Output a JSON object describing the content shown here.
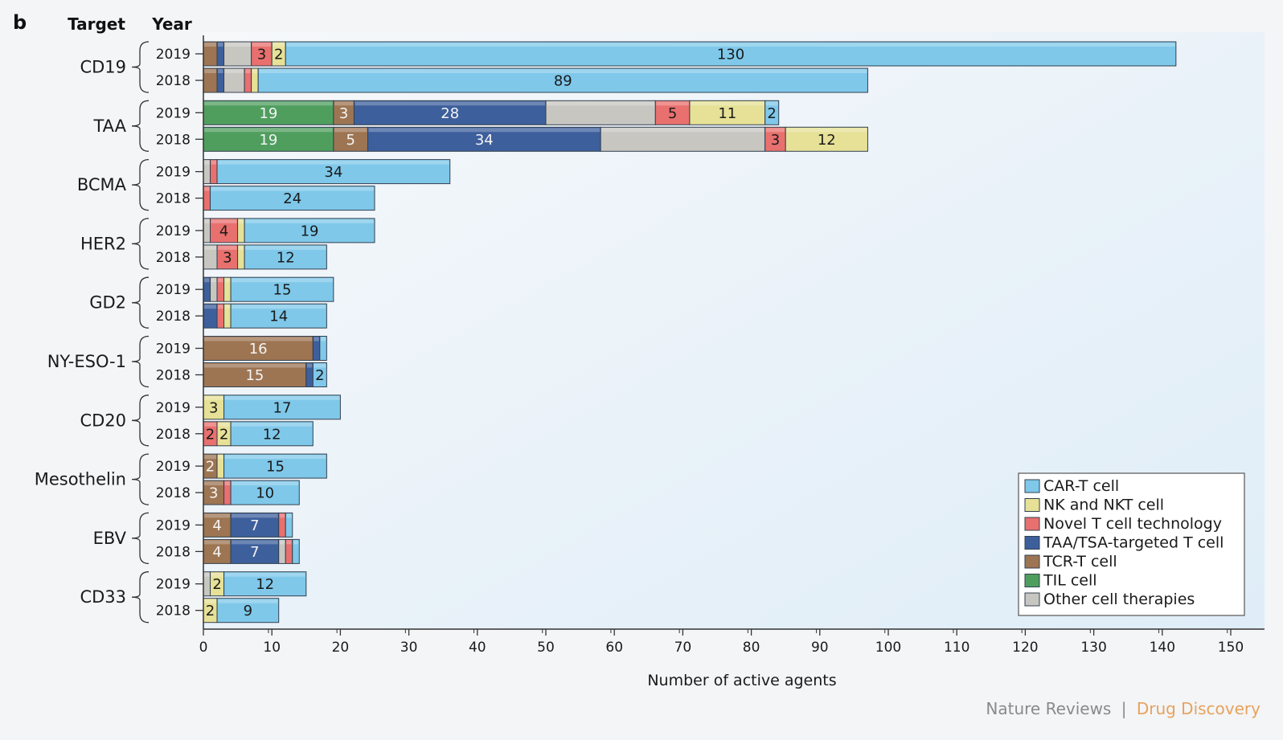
{
  "panel_letter": "b",
  "column_headers": {
    "target": "Target",
    "year": "Year"
  },
  "credit": {
    "journal": "Nature Reviews",
    "separator": "|",
    "section": "Drug Discovery"
  },
  "colors": {
    "CAR-T cell": "#7fc8ea",
    "NK and NKT cell": "#e6e196",
    "Novel T cell technology": "#e8706e",
    "TAA/TSA-targeted T cell": "#3d5f9c",
    "TCR-T cell": "#9d7553",
    "TIL cell": "#4f9e5e",
    "Other cell therapies": "#c8c6c1",
    "credit_journal": "#8a8a8a",
    "credit_section": "#e8a25c"
  },
  "chart_data": {
    "type": "bar",
    "orientation": "horizontal",
    "stacked": true,
    "xlabel": "Number of active agents",
    "xlim": [
      0,
      155
    ],
    "xticks": [
      0,
      10,
      20,
      30,
      40,
      50,
      60,
      70,
      80,
      90,
      100,
      110,
      120,
      130,
      140,
      150
    ],
    "grid": false,
    "legend_position": "bottom-right",
    "legend": [
      "CAR-T cell",
      "NK and NKT cell",
      "Novel T cell technology",
      "TAA/TSA-targeted T cell",
      "TCR-T cell",
      "TIL cell",
      "Other cell therapies"
    ],
    "groups": [
      {
        "target": "CD19",
        "bars": [
          {
            "year": "2019",
            "segments": [
              {
                "series": "TCR-T cell",
                "value": 2
              },
              {
                "series": "TAA/TSA-targeted T cell",
                "value": 1
              },
              {
                "series": "Other cell therapies",
                "value": 4
              },
              {
                "series": "Novel T cell technology",
                "value": 3,
                "label": "3"
              },
              {
                "series": "NK and NKT cell",
                "value": 2,
                "label": "2"
              },
              {
                "series": "CAR-T cell",
                "value": 130,
                "label": "130"
              }
            ]
          },
          {
            "year": "2018",
            "segments": [
              {
                "series": "TCR-T cell",
                "value": 2
              },
              {
                "series": "TAA/TSA-targeted T cell",
                "value": 1
              },
              {
                "series": "Other cell therapies",
                "value": 3
              },
              {
                "series": "Novel T cell technology",
                "value": 1
              },
              {
                "series": "NK and NKT cell",
                "value": 1
              },
              {
                "series": "CAR-T cell",
                "value": 89,
                "label": "89"
              }
            ]
          }
        ]
      },
      {
        "target": "TAA",
        "bars": [
          {
            "year": "2019",
            "segments": [
              {
                "series": "TIL cell",
                "value": 19,
                "label": "19"
              },
              {
                "series": "TCR-T cell",
                "value": 3,
                "label": "3"
              },
              {
                "series": "TAA/TSA-targeted T cell",
                "value": 28,
                "label": "28"
              },
              {
                "series": "Other cell therapies",
                "value": 16
              },
              {
                "series": "Novel T cell technology",
                "value": 5,
                "label": "5"
              },
              {
                "series": "NK and NKT cell",
                "value": 11,
                "label": "11"
              },
              {
                "series": "CAR-T cell",
                "value": 2,
                "label": "2"
              }
            ]
          },
          {
            "year": "2018",
            "segments": [
              {
                "series": "TIL cell",
                "value": 19,
                "label": "19"
              },
              {
                "series": "TCR-T cell",
                "value": 5,
                "label": "5"
              },
              {
                "series": "TAA/TSA-targeted T cell",
                "value": 34,
                "label": "34"
              },
              {
                "series": "Other cell therapies",
                "value": 24
              },
              {
                "series": "Novel T cell technology",
                "value": 3,
                "label": "3"
              },
              {
                "series": "NK and NKT cell",
                "value": 12,
                "label": "12"
              }
            ]
          }
        ]
      },
      {
        "target": "BCMA",
        "bars": [
          {
            "year": "2019",
            "segments": [
              {
                "series": "Other cell therapies",
                "value": 1
              },
              {
                "series": "Novel T cell technology",
                "value": 1
              },
              {
                "series": "CAR-T cell",
                "value": 34,
                "label": "34"
              }
            ]
          },
          {
            "year": "2018",
            "segments": [
              {
                "series": "Novel T cell technology",
                "value": 1
              },
              {
                "series": "CAR-T cell",
                "value": 24,
                "label": "24"
              }
            ]
          }
        ]
      },
      {
        "target": "HER2",
        "bars": [
          {
            "year": "2019",
            "segments": [
              {
                "series": "Other cell therapies",
                "value": 1
              },
              {
                "series": "Novel T cell technology",
                "value": 4,
                "label": "4"
              },
              {
                "series": "NK and NKT cell",
                "value": 1
              },
              {
                "series": "CAR-T cell",
                "value": 19,
                "label": "19"
              }
            ]
          },
          {
            "year": "2018",
            "segments": [
              {
                "series": "Other cell therapies",
                "value": 2
              },
              {
                "series": "Novel T cell technology",
                "value": 3,
                "label": "3"
              },
              {
                "series": "NK and NKT cell",
                "value": 1
              },
              {
                "series": "CAR-T cell",
                "value": 12,
                "label": "12"
              }
            ]
          }
        ]
      },
      {
        "target": "GD2",
        "bars": [
          {
            "year": "2019",
            "segments": [
              {
                "series": "TAA/TSA-targeted T cell",
                "value": 1
              },
              {
                "series": "Other cell therapies",
                "value": 1
              },
              {
                "series": "Novel T cell technology",
                "value": 1
              },
              {
                "series": "NK and NKT cell",
                "value": 1
              },
              {
                "series": "CAR-T cell",
                "value": 15,
                "label": "15"
              }
            ]
          },
          {
            "year": "2018",
            "segments": [
              {
                "series": "TAA/TSA-targeted T cell",
                "value": 2
              },
              {
                "series": "Novel T cell technology",
                "value": 1
              },
              {
                "series": "NK and NKT cell",
                "value": 1
              },
              {
                "series": "CAR-T cell",
                "value": 14,
                "label": "14"
              }
            ]
          }
        ]
      },
      {
        "target": "NY-ESO-1",
        "bars": [
          {
            "year": "2019",
            "segments": [
              {
                "series": "TCR-T cell",
                "value": 16,
                "label": "16"
              },
              {
                "series": "TAA/TSA-targeted T cell",
                "value": 1
              },
              {
                "series": "CAR-T cell",
                "value": 1
              }
            ]
          },
          {
            "year": "2018",
            "segments": [
              {
                "series": "TCR-T cell",
                "value": 15,
                "label": "15"
              },
              {
                "series": "TAA/TSA-targeted T cell",
                "value": 1
              },
              {
                "series": "CAR-T cell",
                "value": 2,
                "label": "2"
              }
            ]
          }
        ]
      },
      {
        "target": "CD20",
        "bars": [
          {
            "year": "2019",
            "segments": [
              {
                "series": "NK and NKT cell",
                "value": 3,
                "label": "3"
              },
              {
                "series": "CAR-T cell",
                "value": 17,
                "label": "17"
              }
            ]
          },
          {
            "year": "2018",
            "segments": [
              {
                "series": "Novel T cell technology",
                "value": 2,
                "label": "2"
              },
              {
                "series": "NK and NKT cell",
                "value": 2,
                "label": "2"
              },
              {
                "series": "CAR-T cell",
                "value": 12,
                "label": "12"
              }
            ]
          }
        ]
      },
      {
        "target": "Mesothelin",
        "bars": [
          {
            "year": "2019",
            "segments": [
              {
                "series": "TCR-T cell",
                "value": 2,
                "label": "2"
              },
              {
                "series": "NK and NKT cell",
                "value": 1
              },
              {
                "series": "CAR-T cell",
                "value": 15,
                "label": "15"
              }
            ]
          },
          {
            "year": "2018",
            "segments": [
              {
                "series": "TCR-T cell",
                "value": 3,
                "label": "3"
              },
              {
                "series": "Novel T cell technology",
                "value": 1
              },
              {
                "series": "CAR-T cell",
                "value": 10,
                "label": "10"
              }
            ]
          }
        ]
      },
      {
        "target": "EBV",
        "bars": [
          {
            "year": "2019",
            "segments": [
              {
                "series": "TCR-T cell",
                "value": 4,
                "label": "4"
              },
              {
                "series": "TAA/TSA-targeted T cell",
                "value": 7,
                "label": "7"
              },
              {
                "series": "Novel T cell technology",
                "value": 1
              },
              {
                "series": "CAR-T cell",
                "value": 1
              }
            ]
          },
          {
            "year": "2018",
            "segments": [
              {
                "series": "TCR-T cell",
                "value": 4,
                "label": "4"
              },
              {
                "series": "TAA/TSA-targeted T cell",
                "value": 7,
                "label": "7"
              },
              {
                "series": "Other cell therapies",
                "value": 1
              },
              {
                "series": "Novel T cell technology",
                "value": 1
              },
              {
                "series": "CAR-T cell",
                "value": 1
              }
            ]
          }
        ]
      },
      {
        "target": "CD33",
        "bars": [
          {
            "year": "2019",
            "segments": [
              {
                "series": "Other cell therapies",
                "value": 1
              },
              {
                "series": "NK and NKT cell",
                "value": 2,
                "label": "2"
              },
              {
                "series": "CAR-T cell",
                "value": 12,
                "label": "12"
              }
            ]
          },
          {
            "year": "2018",
            "segments": [
              {
                "series": "NK and NKT cell",
                "value": 2,
                "label": "2"
              },
              {
                "series": "CAR-T cell",
                "value": 9,
                "label": "9"
              }
            ]
          }
        ]
      }
    ]
  }
}
